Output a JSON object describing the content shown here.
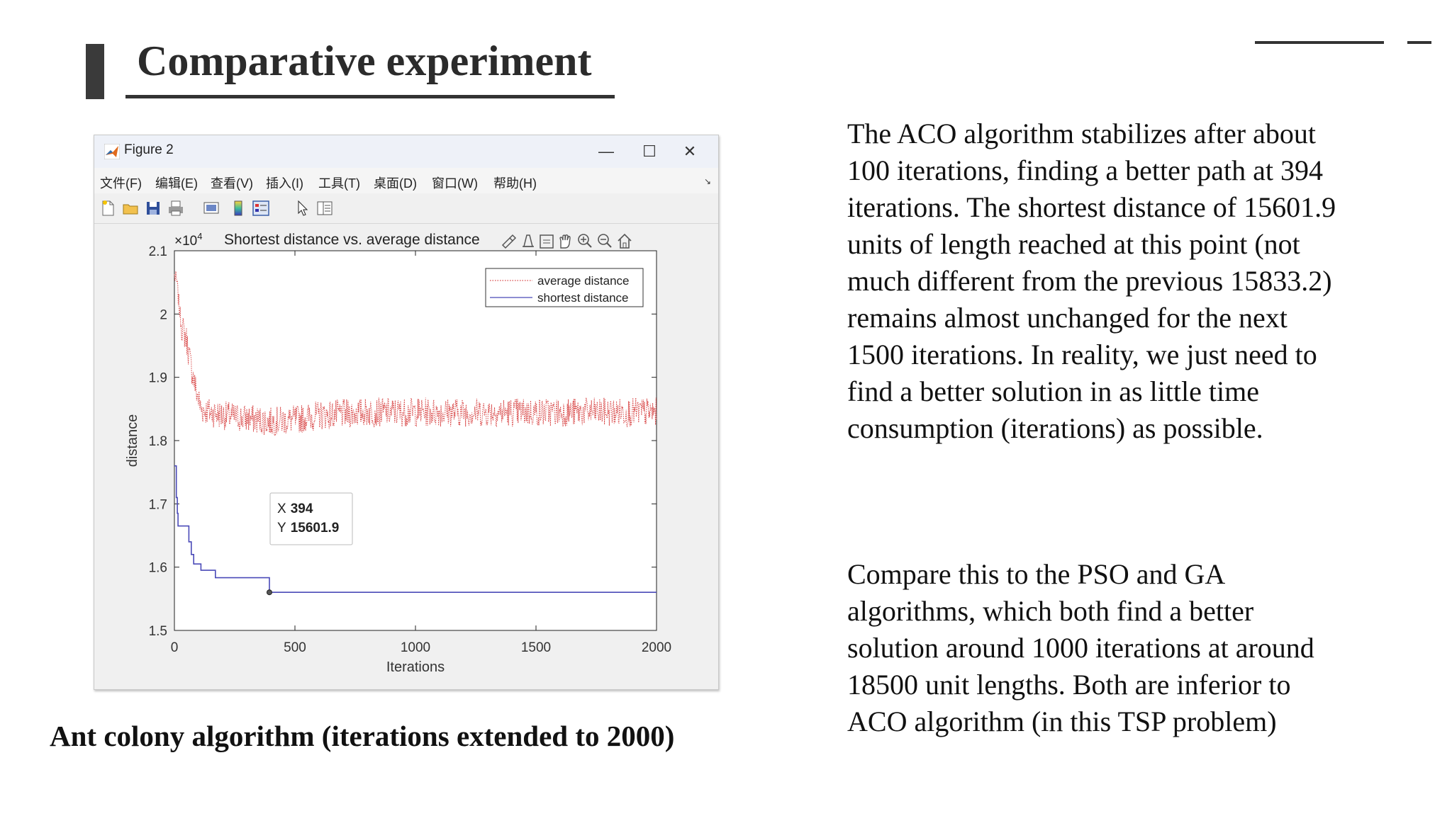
{
  "slide": {
    "title": "Comparative experiment",
    "caption": "Ant colony algorithm (iterations extended to 2000)",
    "paragraph1": "The ACO algorithm stabilizes after about 100 iterations, finding a better path at 394 iterations. The shortest distance of 15601.9 units of length reached at this point (not much different from the previous 15833.2) remains almost unchanged for the next 1500 iterations. In reality, we just need to find a better solution in as little time consumption (iterations) as possible.",
    "paragraph2": "Compare this to the PSO and GA algorithms, which both find a better solution around 1000 iterations at around 18500 unit lengths. Both are inferior to ACO algorithm (in this TSP problem)"
  },
  "window": {
    "title": "Figure 2",
    "minimize_label": "—",
    "maximize_label": "☐",
    "close_label": "✕",
    "menu": [
      "文件(F)",
      "编辑(E)",
      "查看(V)",
      "插入(I)",
      "工具(T)",
      "桌面(D)",
      "窗口(W)",
      "帮助(H)"
    ],
    "dock_label": "↘",
    "toolbar_icons": [
      "new-figure-icon",
      "open-file-icon",
      "save-icon",
      "print-icon",
      "link-plot-icon",
      "colorbar-icon",
      "legend-icon",
      "select-arrow-icon",
      "property-inspector-icon"
    ],
    "axes_toolbar_icons": [
      "brush-icon",
      "data-tips-icon",
      "data-cursor-icon",
      "pan-hand-icon",
      "zoom-in-icon",
      "zoom-out-icon",
      "home-icon"
    ]
  },
  "chart_data": {
    "type": "line",
    "title": "Shortest distance vs. average distance",
    "xlabel": "Iterations",
    "ylabel": "distance",
    "xlim": [
      0,
      2000
    ],
    "ylim": [
      15000,
      21000
    ],
    "x_ticks": [
      "0",
      "500",
      "1000",
      "1500",
      "2000"
    ],
    "y_ticks": [
      "1.5",
      "1.6",
      "1.7",
      "1.8",
      "1.9",
      "2",
      "2.1"
    ],
    "y_multiplier_base": "×10",
    "y_multiplier_exp": "4",
    "grid": false,
    "legend_position": "top-right",
    "series": [
      {
        "name": "average distance",
        "color": "#d84545",
        "style": "dotted",
        "x": [
          0,
          10,
          20,
          30,
          50,
          70,
          90,
          110,
          150,
          200,
          300,
          400,
          500,
          600,
          700,
          800,
          900,
          1000,
          1200,
          1400,
          1600,
          1800,
          2000
        ],
        "y": [
          20600,
          20500,
          20100,
          19800,
          19600,
          19150,
          18800,
          18500,
          18450,
          18400,
          18350,
          18300,
          18330,
          18400,
          18420,
          18450,
          18450,
          18450,
          18450,
          18450,
          18450,
          18450,
          18450
        ],
        "noise": 230
      },
      {
        "name": "shortest distance",
        "color": "#4a4ab8",
        "style": "solid",
        "x": [
          0,
          8,
          12,
          15,
          25,
          45,
          60,
          70,
          80,
          100,
          110,
          120,
          150,
          170,
          250,
          300,
          394,
          2000
        ],
        "y": [
          17600,
          17100,
          16850,
          16650,
          16650,
          16650,
          16400,
          16200,
          16050,
          16050,
          15950,
          15950,
          15950,
          15833.2,
          15833.2,
          15833.2,
          15601.9,
          15601.9
        ]
      }
    ],
    "datatip": {
      "x_label": "X",
      "x_value": "394",
      "y_label": "Y",
      "y_value": "15601.9"
    }
  }
}
